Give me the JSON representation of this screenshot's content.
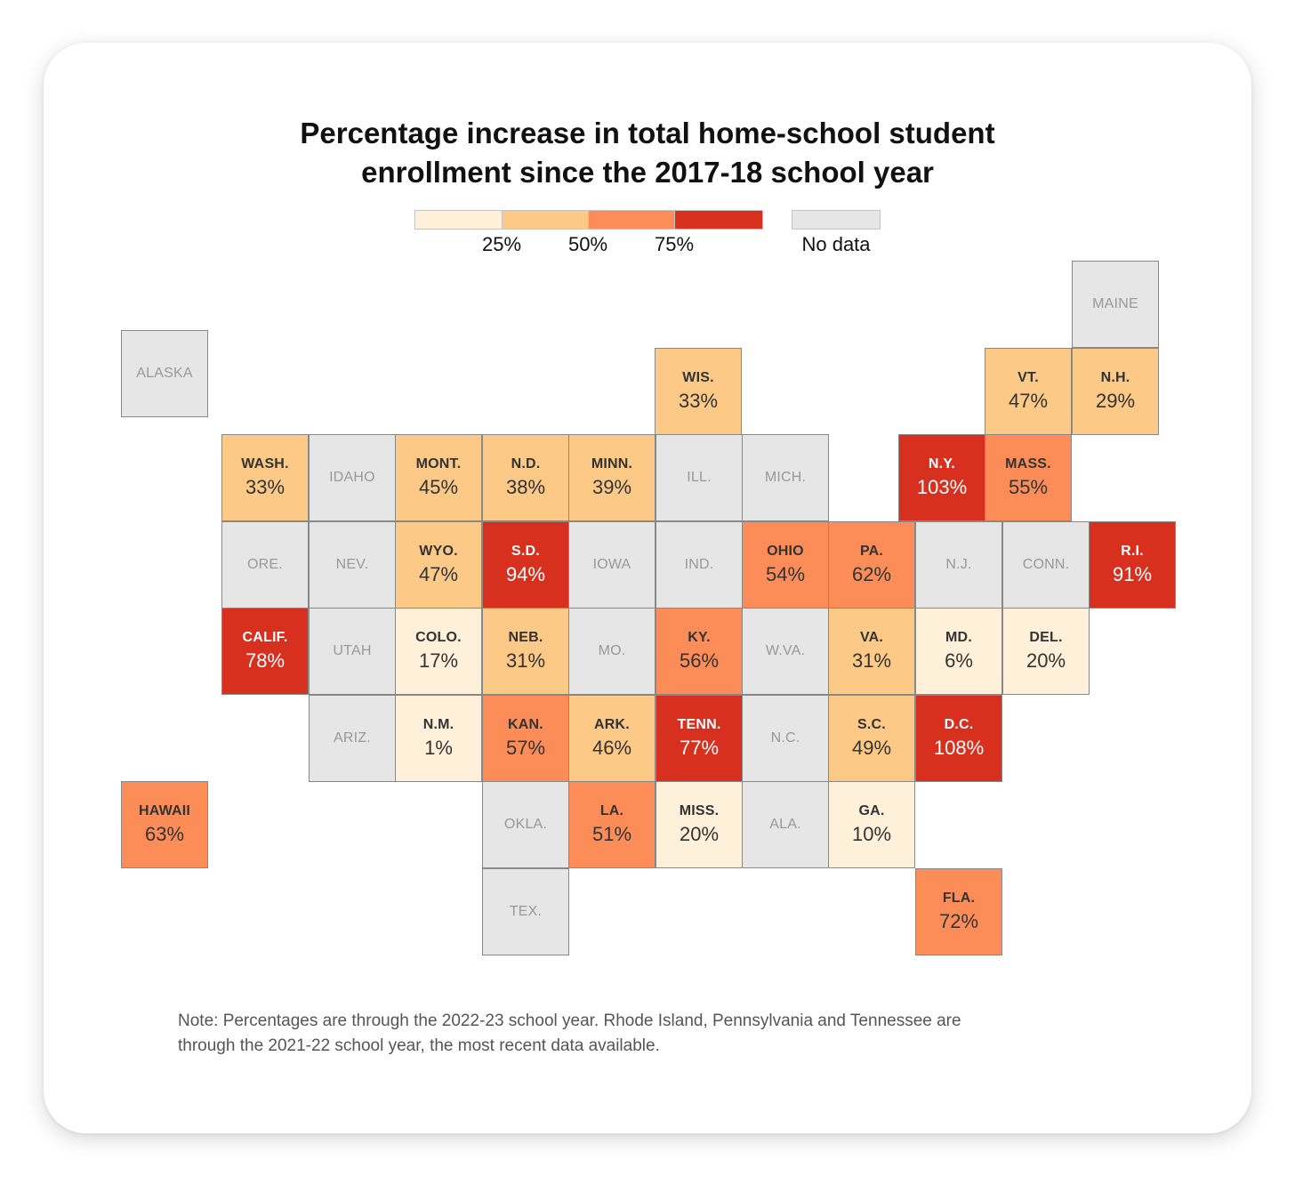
{
  "title": {
    "line1": "Percentage increase in total home-school student",
    "line2": "enrollment since the 2017-18 school year"
  },
  "legend": {
    "bins": [
      {
        "color": "#fef0d9"
      },
      {
        "color": "#fcc987",
        "label": "25%"
      },
      {
        "color": "#fc8d59",
        "label": "50%"
      },
      {
        "color": "#d7301f",
        "label": "75%"
      }
    ],
    "no_data": {
      "color": "#e6e6e6",
      "label": "No data"
    }
  },
  "colors": {
    "bin1": "#fef0d9",
    "bin2": "#fcc987",
    "bin3": "#fc8d59",
    "bin4": "#d7301f",
    "no_data": "#e6e6e6"
  },
  "grid": {
    "col0_x": 136,
    "row0_y": 293,
    "step": 97.5,
    "tile": 98
  },
  "states": [
    {
      "abbr": "MAINE",
      "pct": null,
      "row": 0,
      "col": 11.0
    },
    {
      "abbr": "ALASKA",
      "pct": null,
      "row": 0.8,
      "col": 0
    },
    {
      "abbr": "WIS.",
      "pct": 33,
      "row": 1,
      "col": 6.2
    },
    {
      "abbr": "VT.",
      "pct": 47,
      "row": 1,
      "col": 10.0
    },
    {
      "abbr": "N.H.",
      "pct": 29,
      "row": 1,
      "col": 11.0
    },
    {
      "abbr": "WASH.",
      "pct": 33,
      "row": 2,
      "col": 1.2
    },
    {
      "abbr": "IDAHO",
      "pct": null,
      "row": 2,
      "col": 2.2
    },
    {
      "abbr": "MONT.",
      "pct": 45,
      "row": 2,
      "col": 3.2
    },
    {
      "abbr": "N.D.",
      "pct": 38,
      "row": 2,
      "col": 4.2
    },
    {
      "abbr": "MINN.",
      "pct": 39,
      "row": 2,
      "col": 5.2
    },
    {
      "abbr": "ILL.",
      "pct": null,
      "row": 2,
      "col": 6.2
    },
    {
      "abbr": "MICH.",
      "pct": null,
      "row": 2,
      "col": 7.2
    },
    {
      "abbr": "N.Y.",
      "pct": 103,
      "row": 2,
      "col": 9.0
    },
    {
      "abbr": "MASS.",
      "pct": 55,
      "row": 2,
      "col": 10.0
    },
    {
      "abbr": "ORE.",
      "pct": null,
      "row": 3,
      "col": 1.2
    },
    {
      "abbr": "NEV.",
      "pct": null,
      "row": 3,
      "col": 2.2
    },
    {
      "abbr": "WYO.",
      "pct": 47,
      "row": 3,
      "col": 3.2
    },
    {
      "abbr": "S.D.",
      "pct": 94,
      "row": 3,
      "col": 4.2
    },
    {
      "abbr": "IOWA",
      "pct": null,
      "row": 3,
      "col": 5.2
    },
    {
      "abbr": "IND.",
      "pct": null,
      "row": 3,
      "col": 6.2
    },
    {
      "abbr": "OHIO",
      "pct": 54,
      "row": 3,
      "col": 7.2
    },
    {
      "abbr": "PA.",
      "pct": 62,
      "row": 3,
      "col": 8.2
    },
    {
      "abbr": "N.J.",
      "pct": null,
      "row": 3,
      "col": 9.2
    },
    {
      "abbr": "CONN.",
      "pct": null,
      "row": 3,
      "col": 10.2
    },
    {
      "abbr": "R.I.",
      "pct": 91,
      "row": 3,
      "col": 11.2
    },
    {
      "abbr": "CALIF.",
      "pct": 78,
      "row": 4,
      "col": 1.2
    },
    {
      "abbr": "UTAH",
      "pct": null,
      "row": 4,
      "col": 2.2
    },
    {
      "abbr": "COLO.",
      "pct": 17,
      "row": 4,
      "col": 3.2
    },
    {
      "abbr": "NEB.",
      "pct": 31,
      "row": 4,
      "col": 4.2
    },
    {
      "abbr": "MO.",
      "pct": null,
      "row": 4,
      "col": 5.2
    },
    {
      "abbr": "KY.",
      "pct": 56,
      "row": 4,
      "col": 6.2
    },
    {
      "abbr": "W.VA.",
      "pct": null,
      "row": 4,
      "col": 7.2
    },
    {
      "abbr": "VA.",
      "pct": 31,
      "row": 4,
      "col": 8.2
    },
    {
      "abbr": "MD.",
      "pct": 6,
      "row": 4,
      "col": 9.2
    },
    {
      "abbr": "DEL.",
      "pct": 20,
      "row": 4,
      "col": 10.2
    },
    {
      "abbr": "ARIZ.",
      "pct": null,
      "row": 5,
      "col": 2.2
    },
    {
      "abbr": "N.M.",
      "pct": 1,
      "row": 5,
      "col": 3.2
    },
    {
      "abbr": "KAN.",
      "pct": 57,
      "row": 5,
      "col": 4.2
    },
    {
      "abbr": "ARK.",
      "pct": 46,
      "row": 5,
      "col": 5.2
    },
    {
      "abbr": "TENN.",
      "pct": 77,
      "row": 5,
      "col": 6.2
    },
    {
      "abbr": "N.C.",
      "pct": null,
      "row": 5,
      "col": 7.2
    },
    {
      "abbr": "S.C.",
      "pct": 49,
      "row": 5,
      "col": 8.2
    },
    {
      "abbr": "D.C.",
      "pct": 108,
      "row": 5,
      "col": 9.2
    },
    {
      "abbr": "HAWAII",
      "pct": 63,
      "row": 6,
      "col": 0
    },
    {
      "abbr": "OKLA.",
      "pct": null,
      "row": 6,
      "col": 4.2
    },
    {
      "abbr": "LA.",
      "pct": 51,
      "row": 6,
      "col": 5.2
    },
    {
      "abbr": "MISS.",
      "pct": 20,
      "row": 6,
      "col": 6.2
    },
    {
      "abbr": "ALA.",
      "pct": null,
      "row": 6,
      "col": 7.2
    },
    {
      "abbr": "GA.",
      "pct": 10,
      "row": 6,
      "col": 8.2
    },
    {
      "abbr": "TEX.",
      "pct": null,
      "row": 7,
      "col": 4.2
    },
    {
      "abbr": "FLA.",
      "pct": 72,
      "row": 7,
      "col": 9.2
    }
  ],
  "note": {
    "line1": "Note: Percentages are through the 2022-23 school year. Rhode Island, Pennsylvania and Tennessee are",
    "line2": "through the 2021-22 school year, the most recent data available."
  }
}
